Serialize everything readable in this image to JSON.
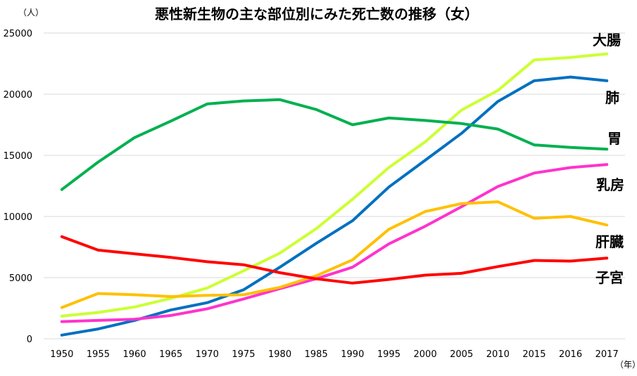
{
  "chart_data": {
    "type": "line",
    "title": "悪性新生物の主な部位別にみた死亡数の推移（女）",
    "ylabel": "（人）",
    "xlabel": "（年）",
    "categories": [
      "1950",
      "1955",
      "1960",
      "1965",
      "1970",
      "1975",
      "1980",
      "1985",
      "1990",
      "1995",
      "2000",
      "2005",
      "2010",
      "2015",
      "2016",
      "2017"
    ],
    "yticks": [
      "0",
      "5000",
      "10000",
      "15000",
      "20000",
      "25000"
    ],
    "ylim": [
      0,
      25000
    ],
    "grid": true,
    "legend": "series labels at right end of lines",
    "series": [
      {
        "name": "大腸",
        "color": "#ccff33",
        "values": [
          1850,
          2150,
          2600,
          3300,
          4150,
          5550,
          7000,
          9000,
          11400,
          14000,
          16100,
          18700,
          20300,
          22800,
          23000,
          23300
        ]
      },
      {
        "name": "肺",
        "color": "#0070c0",
        "values": [
          300,
          800,
          1500,
          2350,
          2950,
          4000,
          5850,
          7800,
          9650,
          12400,
          14600,
          16800,
          19400,
          21100,
          21400,
          21100
        ]
      },
      {
        "name": "胃",
        "color": "#00b050",
        "values": [
          12200,
          14450,
          16450,
          17800,
          19200,
          19450,
          19550,
          18750,
          17500,
          18050,
          17850,
          17600,
          17150,
          15850,
          15650,
          15500
        ]
      },
      {
        "name": "乳房",
        "color": "#ff33cc",
        "values": [
          1400,
          1500,
          1600,
          1900,
          2450,
          3250,
          4100,
          4900,
          5850,
          7750,
          9200,
          10800,
          12450,
          13550,
          14000,
          14250
        ]
      },
      {
        "name": "肝臓",
        "color": "#ffc000",
        "values": [
          2550,
          3700,
          3600,
          3450,
          3550,
          3600,
          4200,
          5150,
          6450,
          8950,
          10400,
          11050,
          11200,
          9850,
          10000,
          9300
        ]
      },
      {
        "name": "子宮",
        "color": "#ff0000",
        "values": [
          8350,
          7250,
          6950,
          6650,
          6300,
          6050,
          5400,
          4900,
          4550,
          4850,
          5200,
          5350,
          5900,
          6400,
          6350,
          6600
        ]
      }
    ]
  }
}
